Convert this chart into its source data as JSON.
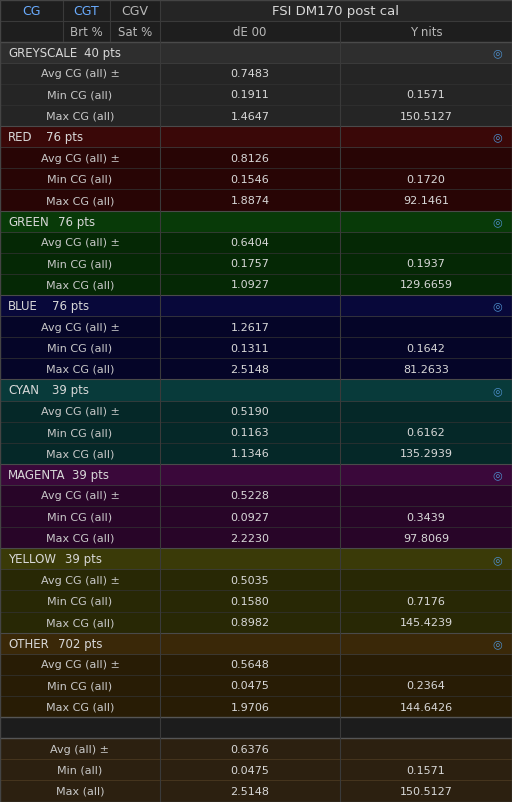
{
  "title": "FSI DM170 post cal",
  "sections": [
    {
      "name": "GREYSCALE",
      "pts": "40 pts",
      "rows": [
        {
          "label": "Avg CG (all) ±",
          "de00": "0.7483",
          "ynits": ""
        },
        {
          "label": "Min CG (all)",
          "de00": "0.1911",
          "ynits": "0.1571"
        },
        {
          "label": "Max CG (all)",
          "de00": "1.4647",
          "ynits": "150.5127"
        }
      ],
      "hdr_bg": "#2e2e2e",
      "row_bg": "#252525"
    },
    {
      "name": "RED",
      "pts": "76 pts",
      "rows": [
        {
          "label": "Avg CG (all) ±",
          "de00": "0.8126",
          "ynits": ""
        },
        {
          "label": "Min CG (all)",
          "de00": "0.1546",
          "ynits": "0.1720"
        },
        {
          "label": "Max CG (all)",
          "de00": "1.8874",
          "ynits": "92.1461"
        }
      ],
      "hdr_bg": "#3a0808",
      "row_bg": "#280505"
    },
    {
      "name": "GREEN",
      "pts": "76 pts",
      "rows": [
        {
          "label": "Avg CG (all) ±",
          "de00": "0.6404",
          "ynits": ""
        },
        {
          "label": "Min CG (all)",
          "de00": "0.1757",
          "ynits": "0.1937"
        },
        {
          "label": "Max CG (all)",
          "de00": "1.0927",
          "ynits": "129.6659"
        }
      ],
      "hdr_bg": "#083a08",
      "row_bg": "#052805"
    },
    {
      "name": "BLUE",
      "pts": "76 pts",
      "rows": [
        {
          "label": "Avg CG (all) ±",
          "de00": "1.2617",
          "ynits": ""
        },
        {
          "label": "Min CG (all)",
          "de00": "0.1311",
          "ynits": "0.1642"
        },
        {
          "label": "Max CG (all)",
          "de00": "2.5148",
          "ynits": "81.2633"
        }
      ],
      "hdr_bg": "#08083a",
      "row_bg": "#050528"
    },
    {
      "name": "CYAN",
      "pts": "39 pts",
      "rows": [
        {
          "label": "Avg CG (all) ±",
          "de00": "0.5190",
          "ynits": ""
        },
        {
          "label": "Min CG (all)",
          "de00": "0.1163",
          "ynits": "0.6162"
        },
        {
          "label": "Max CG (all)",
          "de00": "1.1346",
          "ynits": "135.2939"
        }
      ],
      "hdr_bg": "#083a3a",
      "row_bg": "#052828"
    },
    {
      "name": "MAGENTA",
      "pts": "39 pts",
      "rows": [
        {
          "label": "Avg CG (all) ±",
          "de00": "0.5228",
          "ynits": ""
        },
        {
          "label": "Min CG (all)",
          "de00": "0.0927",
          "ynits": "0.3439"
        },
        {
          "label": "Max CG (all)",
          "de00": "2.2230",
          "ynits": "97.8069"
        }
      ],
      "hdr_bg": "#3a083a",
      "row_bg": "#280528"
    },
    {
      "name": "YELLOW",
      "pts": "39 pts",
      "rows": [
        {
          "label": "Avg CG (all) ±",
          "de00": "0.5035",
          "ynits": ""
        },
        {
          "label": "Min CG (all)",
          "de00": "0.1580",
          "ynits": "0.7176"
        },
        {
          "label": "Max CG (all)",
          "de00": "0.8982",
          "ynits": "145.4239"
        }
      ],
      "hdr_bg": "#3a3a08",
      "row_bg": "#282805"
    },
    {
      "name": "OTHER",
      "pts": "702 pts",
      "rows": [
        {
          "label": "Avg CG (all) ±",
          "de00": "0.5648",
          "ynits": ""
        },
        {
          "label": "Min CG (all)",
          "de00": "0.0475",
          "ynits": "0.2364"
        },
        {
          "label": "Max CG (all)",
          "de00": "1.9706",
          "ynits": "144.6426"
        }
      ],
      "hdr_bg": "#3a2808",
      "row_bg": "#281c05"
    }
  ],
  "footer_rows": [
    {
      "label": "Avg (all) ±",
      "de00": "0.6376",
      "ynits": ""
    },
    {
      "label": "Min (all)",
      "de00": "0.0475",
      "ynits": "0.1571"
    },
    {
      "label": "Max (all)",
      "de00": "2.5148",
      "ynits": "150.5127"
    }
  ],
  "bg_dark": "#1c1c1c",
  "text_white": "#d8d8d8",
  "text_blue": "#4d8fcc",
  "text_blue2": "#6aacff",
  "divider": "#3a3a3a",
  "fig_w": 5.12,
  "fig_h": 8.03,
  "dpi": 100
}
